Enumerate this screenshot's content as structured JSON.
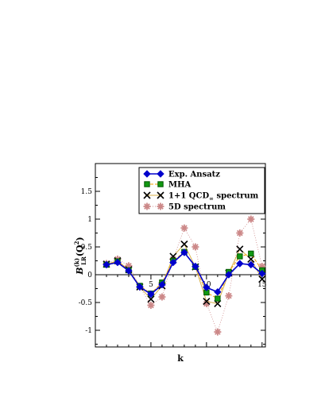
{
  "chart_data": {
    "type": "line",
    "xlabel": "k",
    "ylabel": "B",
    "ylabel_super": "(k)",
    "ylabel_sub": "LR",
    "ylabel_arg": "(Q",
    "ylabel_arg_sup": "2",
    "ylabel_arg_close": ")",
    "xlim": [
      0,
      15.3
    ],
    "ylim": [
      -1.3,
      2.0
    ],
    "xticks": [
      5,
      10,
      15
    ],
    "yticks": [
      -1,
      -0.5,
      0,
      0.5,
      1,
      1.5
    ],
    "ytick_labels": [
      "-1",
      "-0.5",
      "0",
      "0.5",
      "1",
      "1.5"
    ],
    "xtick_labels": [
      "5",
      "10",
      "15"
    ],
    "legend_position": "top-right",
    "series": [
      {
        "name": "Exp. Ansatz",
        "color": "#0000cc",
        "marker": "diamond",
        "x": [
          1,
          2,
          3,
          4,
          5,
          6,
          7,
          8,
          9,
          10,
          11,
          12,
          13,
          14,
          15
        ],
        "y": [
          0.18,
          0.22,
          0.07,
          -0.22,
          -0.35,
          -0.18,
          0.22,
          0.4,
          0.15,
          -0.23,
          -0.31,
          0.0,
          0.2,
          0.18,
          0.02
        ]
      },
      {
        "name": "MHA",
        "color": "#007700",
        "line_color": "#f0a000",
        "marker": "square",
        "x": [
          1,
          2,
          3,
          4,
          5,
          6,
          7,
          8,
          9,
          10,
          11,
          12,
          13,
          14,
          15
        ],
        "y": [
          0.18,
          0.24,
          0.08,
          -0.2,
          -0.34,
          -0.14,
          0.25,
          0.41,
          0.14,
          -0.32,
          -0.43,
          0.05,
          0.33,
          0.38,
          0.08
        ]
      },
      {
        "name": "1+1 QCD",
        "name_sub": "∞",
        "name_suffix": " spectrum",
        "color": "#000000",
        "marker": "x",
        "x": [
          1,
          2,
          3,
          4,
          5,
          6,
          7,
          8,
          9,
          10,
          11,
          12,
          13,
          14,
          15
        ],
        "y": [
          0.19,
          0.25,
          0.09,
          -0.22,
          -0.44,
          -0.2,
          0.33,
          0.55,
          0.14,
          -0.48,
          -0.52,
          0.03,
          0.46,
          0.28,
          -0.08
        ]
      },
      {
        "name": "5D  spectrum",
        "color": "#cc8888",
        "marker": "star",
        "x": [
          1,
          2,
          3,
          4,
          5,
          6,
          7,
          8,
          9,
          10,
          11,
          12,
          13,
          14,
          15
        ],
        "y": [
          0.2,
          0.28,
          0.16,
          -0.22,
          -0.55,
          -0.4,
          0.28,
          0.84,
          0.5,
          -0.52,
          -1.03,
          -0.38,
          0.75,
          1.0,
          0.15
        ]
      }
    ]
  }
}
